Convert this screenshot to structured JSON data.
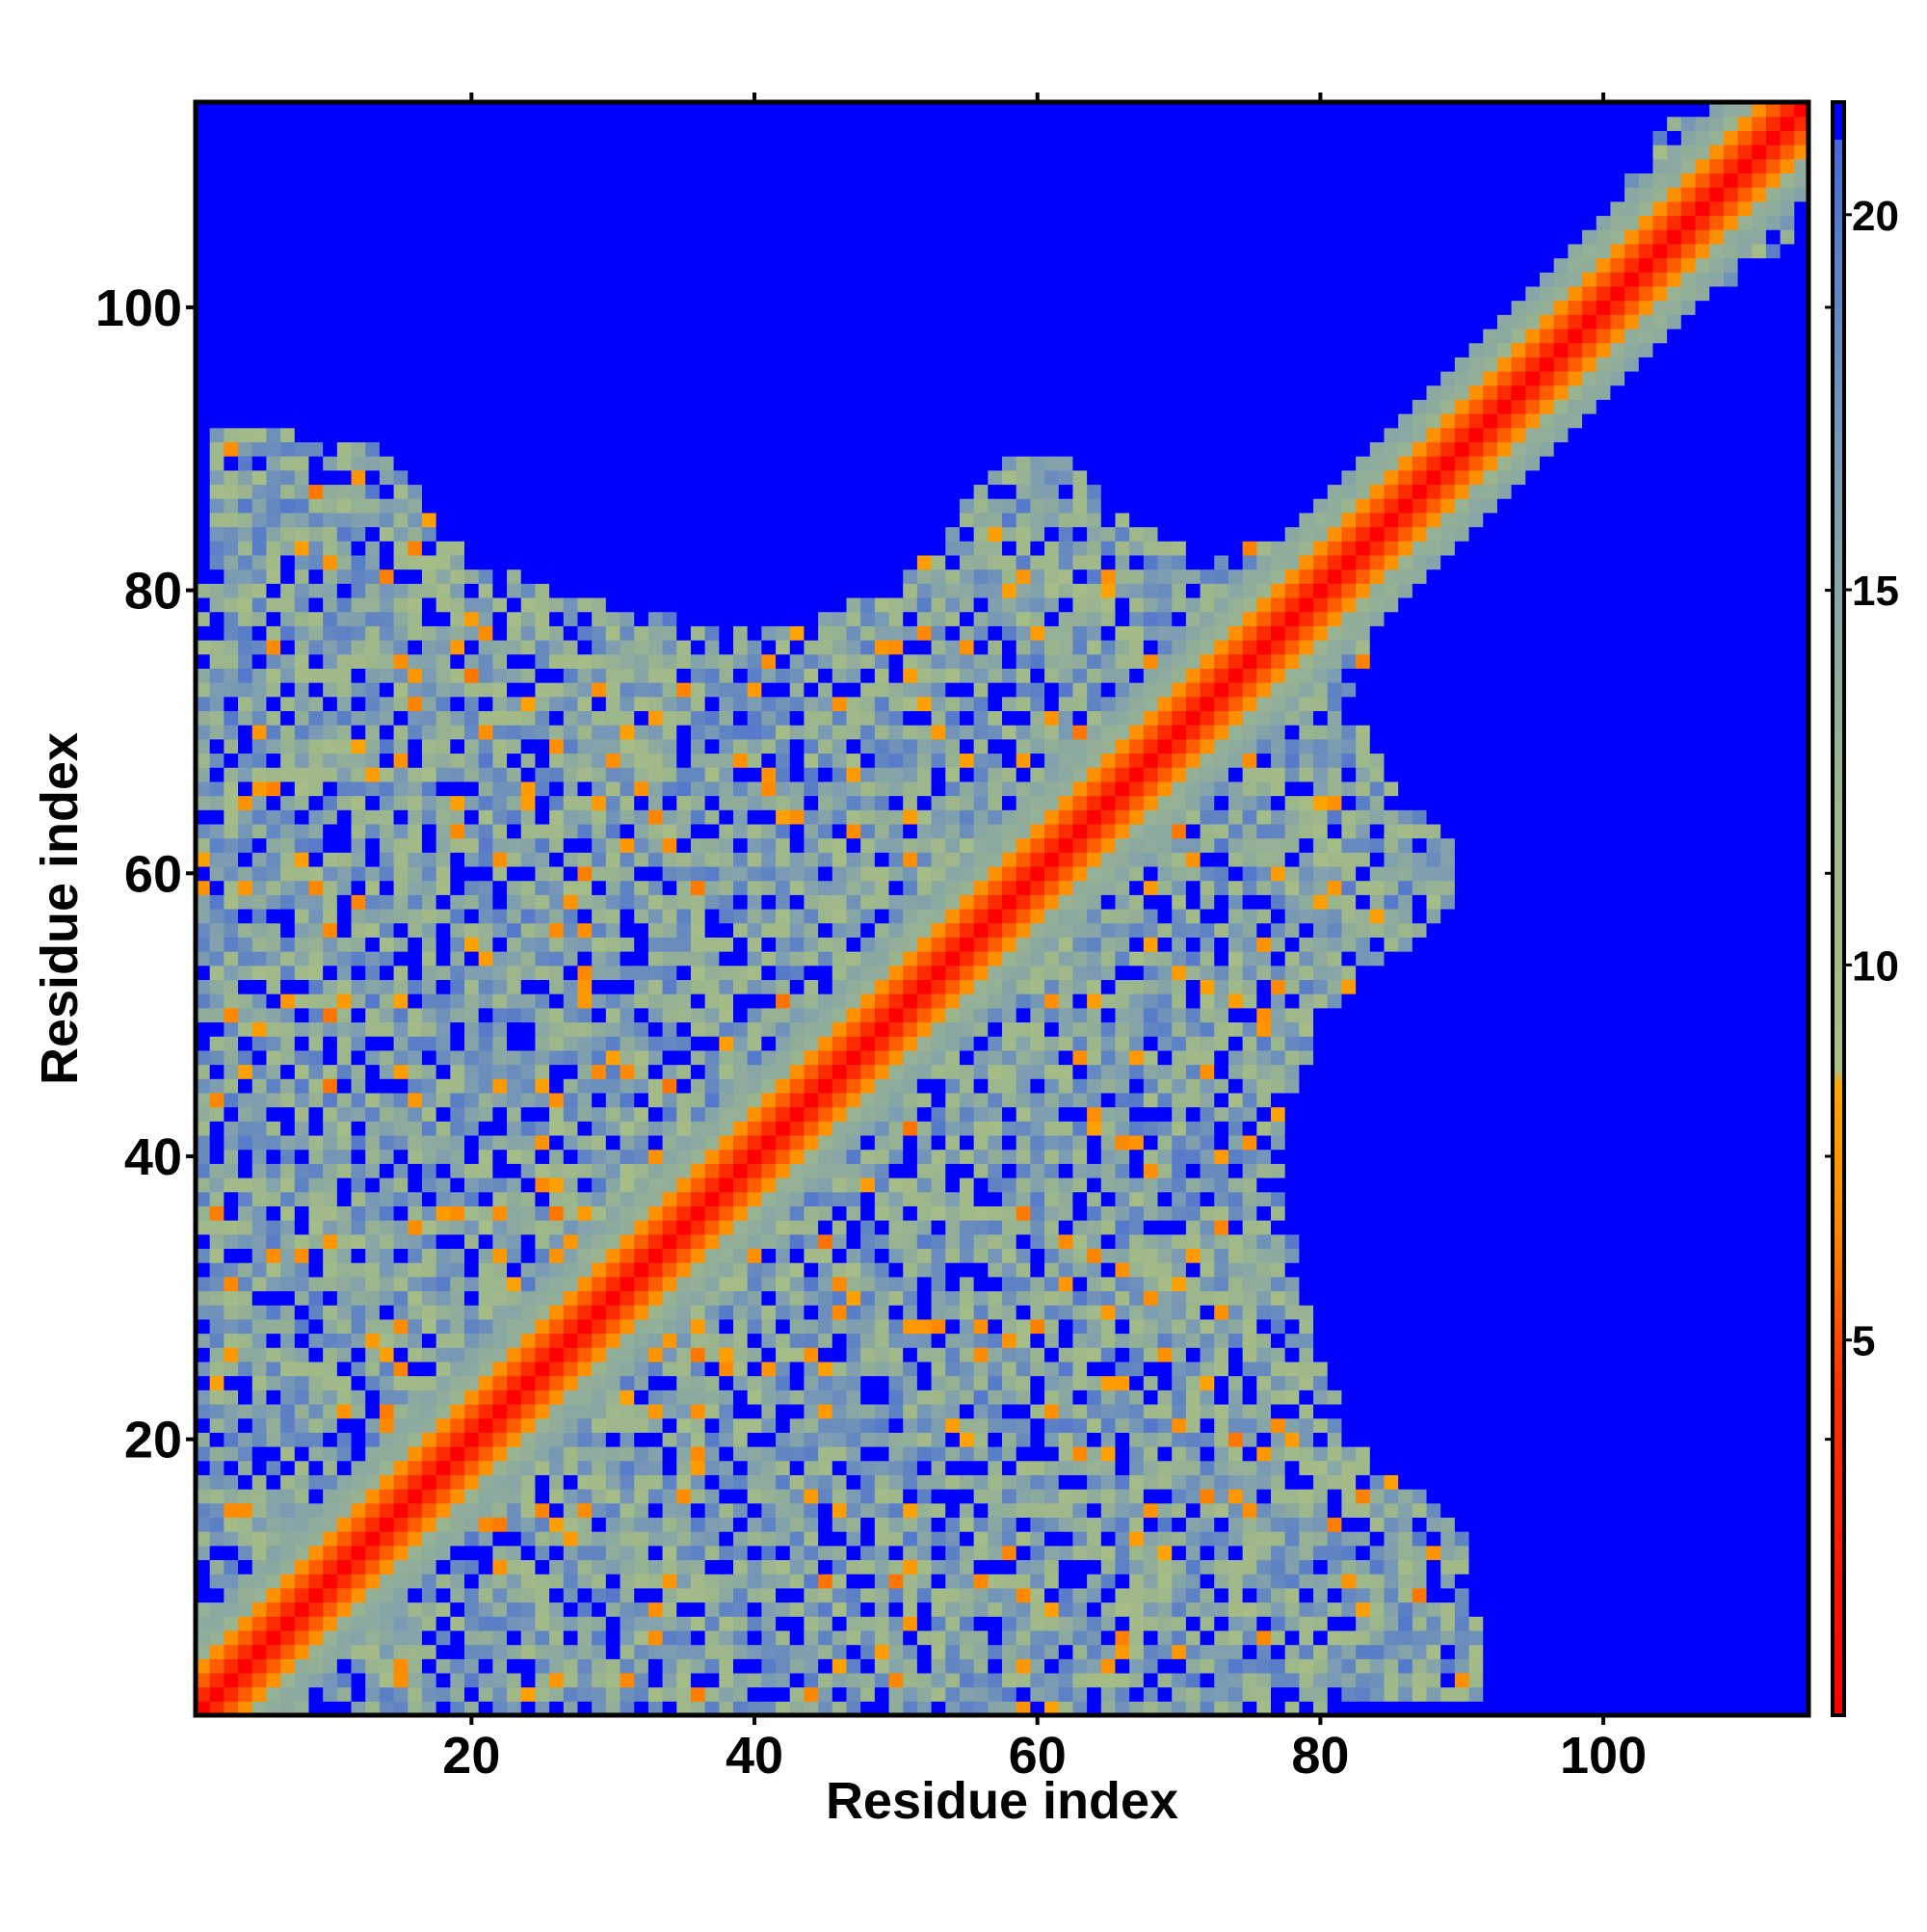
{
  "chart_data": {
    "type": "heatmap",
    "title": "",
    "xlabel": "Residue index",
    "ylabel": "Residue index",
    "n_residues": 114,
    "xlim": [
      0.5,
      114.5
    ],
    "ylim": [
      0.5,
      114.5
    ],
    "x_ticks": [
      20,
      40,
      60,
      80,
      100
    ],
    "y_ticks": [
      20,
      40,
      60,
      80,
      100
    ],
    "colorbar": {
      "range": [
        0,
        21.5
      ],
      "ticks": [
        5,
        10,
        15,
        20
      ],
      "stops": [
        {
          "value": 0,
          "color": "#ff0000"
        },
        {
          "value": 4.5,
          "color": "#ff3300"
        },
        {
          "value": 6.5,
          "color": "#ff8800"
        },
        {
          "value": 8.4,
          "color": "#ffa500"
        },
        {
          "value": 8.6,
          "color": "#a9bf85"
        },
        {
          "value": 12,
          "color": "#9cb68c"
        },
        {
          "value": 16,
          "color": "#7f9fb0"
        },
        {
          "value": 19.5,
          "color": "#5b80c6"
        },
        {
          "value": 21.5,
          "color": "#4060e0"
        }
      ],
      "cutoff_value": 21,
      "cutoff_color": "#0000ff"
    },
    "description_values": {
      "diagonal_distance": 0,
      "near_diagonal_distances": [
        3.8,
        5.5,
        7.0
      ],
      "background_distance": 21
    }
  }
}
